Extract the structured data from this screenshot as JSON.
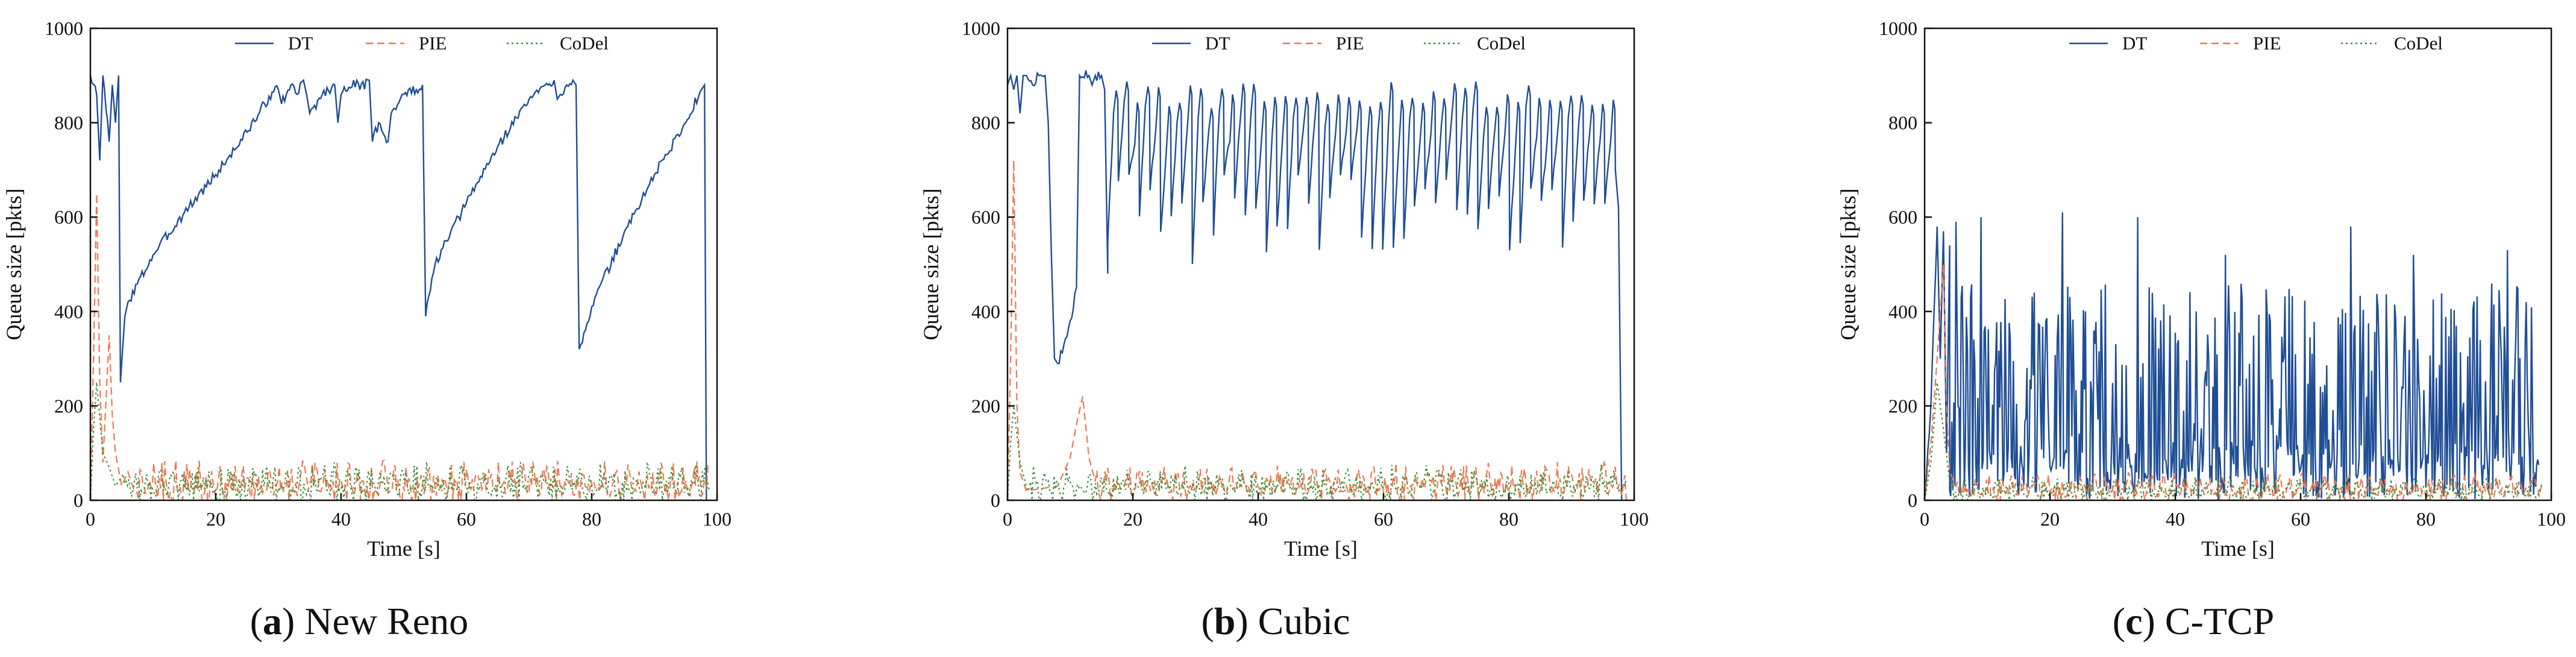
{
  "colors": {
    "DT": "#1f4e96",
    "PIE": "#f07850",
    "CoDel": "#3c8f3c",
    "axis": "#111111"
  },
  "chart_data": [
    {
      "type": "line",
      "panel_letter": "a",
      "title": "New Reno",
      "xlabel": "Time [s]",
      "ylabel": "Queue size [pkts]",
      "xlim": [
        0,
        100
      ],
      "ylim": [
        0,
        1000
      ],
      "xticks": [
        "0",
        "20",
        "40",
        "60",
        "80",
        "100"
      ],
      "yticks": [
        "0",
        "200",
        "400",
        "600",
        "800",
        "1000"
      ],
      "legend_position": "top-center",
      "series": [
        {
          "name": "DT",
          "style": "solid",
          "points": [
            [
              0,
              900
            ],
            [
              1,
              860
            ],
            [
              1.5,
              720
            ],
            [
              2,
              900
            ],
            [
              3,
              760
            ],
            [
              3.5,
              880
            ],
            [
              4,
              800
            ],
            [
              4.5,
              900
            ],
            [
              4.8,
              250
            ],
            [
              5.5,
              390
            ],
            [
              6,
              420
            ],
            [
              10,
              520
            ],
            [
              15,
              610
            ],
            [
              20,
              690
            ],
            [
              25,
              780
            ],
            [
              29,
              865
            ],
            [
              30,
              870
            ],
            [
              30.5,
              840
            ],
            [
              32,
              880
            ],
            [
              33,
              860
            ],
            [
              34,
              890
            ],
            [
              34.5,
              860
            ],
            [
              35,
              820
            ],
            [
              37,
              860
            ],
            [
              39,
              880
            ],
            [
              39.5,
              800
            ],
            [
              40,
              860
            ],
            [
              42,
              890
            ],
            [
              43,
              870
            ],
            [
              44.5,
              890
            ],
            [
              45,
              760
            ],
            [
              46,
              800
            ],
            [
              47.5,
              760
            ],
            [
              48,
              820
            ],
            [
              50,
              860
            ],
            [
              52,
              870
            ],
            [
              53,
              880
            ],
            [
              53.5,
              390
            ],
            [
              55,
              500
            ],
            [
              60,
              630
            ],
            [
              65,
              750
            ],
            [
              70,
              850
            ],
            [
              73,
              880
            ],
            [
              74,
              890
            ],
            [
              74.5,
              850
            ],
            [
              75,
              860
            ],
            [
              76,
              880
            ],
            [
              77,
              890
            ],
            [
              77.5,
              880
            ],
            [
              78,
              320
            ],
            [
              80,
              410
            ],
            [
              85,
              560
            ],
            [
              90,
              690
            ],
            [
              95,
              800
            ],
            [
              97.5,
              870
            ],
            [
              98,
              880
            ],
            [
              98.3,
              0
            ]
          ]
        },
        {
          "name": "PIE",
          "style": "dashed",
          "amplitude": 80,
          "points": [
            [
              0,
              0
            ],
            [
              0.5,
              300
            ],
            [
              1,
              650
            ],
            [
              1.5,
              250
            ],
            [
              2,
              80
            ],
            [
              3,
              350
            ],
            [
              3.5,
              180
            ],
            [
              4,
              100
            ],
            [
              5,
              30
            ],
            [
              6,
              60
            ],
            [
              7,
              20
            ]
          ]
        },
        {
          "name": "CoDel",
          "style": "dotted",
          "amplitude": 75,
          "points": [
            [
              0,
              0
            ],
            [
              0.5,
              150
            ],
            [
              1,
              250
            ],
            [
              2,
              100
            ],
            [
              3,
              70
            ],
            [
              4,
              30
            ],
            [
              5,
              50
            ]
          ]
        }
      ]
    },
    {
      "type": "line",
      "panel_letter": "b",
      "title": "Cubic",
      "xlabel": "Time [s]",
      "ylabel": "Queue size [pkts]",
      "xlim": [
        0,
        100
      ],
      "ylim": [
        0,
        1000
      ],
      "xticks": [
        "0",
        "20",
        "40",
        "60",
        "80",
        "100"
      ],
      "yticks": [
        "0",
        "200",
        "400",
        "600",
        "800",
        "1000"
      ],
      "legend_position": "top-center",
      "series": [
        {
          "name": "DT",
          "style": "solid",
          "sawtooth": {
            "start": 16,
            "end": 97,
            "count": 48,
            "peak": 890,
            "min_low": 500,
            "max_low": 690
          },
          "points": [
            [
              0,
              880
            ],
            [
              0.5,
              900
            ],
            [
              1,
              870
            ],
            [
              1.5,
              900
            ],
            [
              2,
              820
            ],
            [
              2.5,
              900
            ],
            [
              3,
              900
            ],
            [
              4,
              880
            ],
            [
              5,
              900
            ],
            [
              6,
              900
            ],
            [
              6.5,
              800
            ],
            [
              7,
              520
            ],
            [
              7.5,
              300
            ],
            [
              8,
              290
            ],
            [
              9,
              330
            ],
            [
              10,
              380
            ],
            [
              11,
              450
            ],
            [
              11.5,
              900
            ],
            [
              13,
              900
            ],
            [
              13.5,
              880
            ],
            [
              14,
              900
            ],
            [
              15,
              900
            ],
            [
              15.5,
              870
            ],
            [
              16,
              480
            ],
            [
              97,
              700
            ],
            [
              97.5,
              620
            ],
            [
              98,
              0
            ]
          ]
        },
        {
          "name": "PIE",
          "style": "dashed",
          "amplitude": 75,
          "points": [
            [
              0,
              0
            ],
            [
              0.5,
              300
            ],
            [
              1,
              720
            ],
            [
              1.5,
              200
            ],
            [
              2,
              60
            ],
            [
              3,
              20
            ],
            [
              8,
              30
            ],
            [
              10,
              90
            ],
            [
              11,
              160
            ],
            [
              12,
              220
            ],
            [
              13,
              90
            ],
            [
              14,
              40
            ]
          ]
        },
        {
          "name": "CoDel",
          "style": "dotted",
          "amplitude": 70,
          "points": [
            [
              0,
              0
            ],
            [
              0.5,
              120
            ],
            [
              1,
              200
            ],
            [
              2,
              80
            ],
            [
              3,
              30
            ]
          ]
        }
      ]
    },
    {
      "type": "line",
      "panel_letter": "c",
      "title": "C-TCP",
      "xlabel": "Time [s]",
      "ylabel": "Queue size [pkts]",
      "xlim": [
        0,
        100
      ],
      "ylim": [
        0,
        1000
      ],
      "xticks": [
        "0",
        "20",
        "40",
        "60",
        "80",
        "100"
      ],
      "yticks": [
        "0",
        "200",
        "400",
        "600",
        "800",
        "1000"
      ],
      "legend_position": "top-center",
      "series": [
        {
          "name": "DT",
          "style": "solid",
          "noise": {
            "start": 4,
            "end": 98,
            "spikes_per_unit": 6,
            "max": 420,
            "peaks": [
              [
                5,
                590
              ],
              [
                9,
                600
              ],
              [
                22,
                610
              ],
              [
                34,
                600
              ],
              [
                48,
                520
              ],
              [
                68,
                580
              ],
              [
                78,
                520
              ],
              [
                93,
                530
              ]
            ]
          },
          "points": [
            [
              0,
              0
            ],
            [
              1,
              200
            ],
            [
              2,
              580
            ],
            [
              2.5,
              300
            ],
            [
              3,
              570
            ],
            [
              3.5,
              100
            ],
            [
              4,
              540
            ]
          ]
        },
        {
          "name": "PIE",
          "style": "dashed",
          "amplitude": 55,
          "points": [
            [
              0,
              0
            ],
            [
              1,
              120
            ],
            [
              2,
              300
            ],
            [
              3,
              500
            ],
            [
              3.5,
              200
            ],
            [
              4,
              60
            ],
            [
              5,
              30
            ]
          ]
        },
        {
          "name": "CoDel",
          "style": "dotted",
          "amplitude": 45,
          "points": [
            [
              0,
              0
            ],
            [
              1,
              80
            ],
            [
              2,
              250
            ],
            [
              3,
              150
            ],
            [
              4,
              40
            ]
          ]
        }
      ]
    }
  ]
}
